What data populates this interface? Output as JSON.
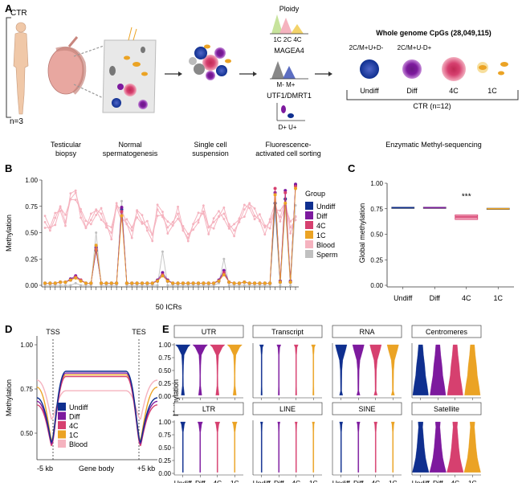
{
  "panels": {
    "a": {
      "letter": "A",
      "ctr": "CTR",
      "n": "n=3",
      "steps": [
        "Testicular",
        "biopsy",
        "Normal",
        "spermatogenesis",
        "Single cell",
        "suspension",
        "Fluorescence-",
        "activated cell sorting"
      ],
      "facs": {
        "ploidy": "Ploidy",
        "ploidy_ticks": "1C 2C 4C",
        "magea4": "MAGEA4",
        "magea4_ticks": "M-  M+",
        "utf1": "UTF1/DMRT1",
        "utf1_ticks": "D+  U+"
      },
      "wgs_title": "Whole genome CpGs (28,049,115)",
      "gate1": "2C/M+U+D-",
      "gate2": "2C/M+U-D+",
      "cells": [
        "Undiff",
        "Diff",
        "4C",
        "1C"
      ],
      "ctr_n": "CTR (n=12)",
      "method": "Enzymatic Methyl-sequencing"
    },
    "b": {
      "letter": "B",
      "ylabel": "Methylation",
      "xlabel": "50 ICRs",
      "legend_title": "Group"
    },
    "c": {
      "letter": "C",
      "ylabel": "Global methylation",
      "sig": "***"
    },
    "d": {
      "letter": "D",
      "ylabel": "Methylation",
      "tss": "TSS",
      "tes": "TES",
      "xl": "-5 kb",
      "xm": "Gene body",
      "xr": "+5 kb"
    },
    "e": {
      "letter": "E",
      "ylabel": "Methylation",
      "facets": [
        "UTR",
        "Transcript",
        "RNA",
        "Centromeres",
        "LTR",
        "LINE",
        "SINE",
        "Satellite"
      ]
    }
  },
  "colors": {
    "Undiff": "#0f2f8f",
    "Diff": "#7d1a9e",
    "4C": "#d6406f",
    "1C": "#eba324",
    "Blood": "#f5b3bf",
    "Sperm": "#c0c0c0"
  },
  "chart_data": [
    {
      "panel": "B",
      "type": "line",
      "xlabel": "50 ICRs",
      "ylabel": "Methylation",
      "ylim": [
        0,
        1
      ],
      "yticks": [
        "0.00",
        "0.25",
        "0.50",
        "0.75",
        "1.00"
      ],
      "legend": {
        "title": "Group",
        "placement": "right",
        "entries": [
          "Undiff",
          "Diff",
          "4C",
          "1C",
          "Blood",
          "Sperm"
        ]
      },
      "series": [
        {
          "name": "Undiff",
          "values": [
            0.02,
            0.02,
            0.02,
            0.03,
            0.03,
            0.05,
            0.08,
            0.05,
            0.02,
            0.02,
            0.33,
            0.02,
            0.02,
            0.02,
            0.02,
            0.72,
            0.02,
            0.02,
            0.02,
            0.02,
            0.02,
            0.02,
            0.04,
            0.1,
            0.04,
            0.02,
            0.02,
            0.02,
            0.02,
            0.02,
            0.02,
            0.02,
            0.02,
            0.02,
            0.04,
            0.12,
            0.03,
            0.02,
            0.02,
            0.03,
            0.02,
            0.02,
            0.02,
            0.02,
            0.02,
            0.78,
            0.03,
            0.82,
            0.03,
            0.95
          ]
        },
        {
          "name": "Diff",
          "values": [
            0.02,
            0.02,
            0.02,
            0.03,
            0.03,
            0.06,
            0.09,
            0.05,
            0.02,
            0.02,
            0.36,
            0.02,
            0.02,
            0.02,
            0.02,
            0.74,
            0.02,
            0.02,
            0.02,
            0.02,
            0.02,
            0.02,
            0.05,
            0.12,
            0.05,
            0.02,
            0.02,
            0.02,
            0.02,
            0.02,
            0.02,
            0.02,
            0.02,
            0.02,
            0.05,
            0.14,
            0.03,
            0.02,
            0.02,
            0.03,
            0.02,
            0.02,
            0.02,
            0.02,
            0.02,
            0.88,
            0.04,
            0.9,
            0.04,
            0.96
          ]
        },
        {
          "name": "4C",
          "values": [
            0.02,
            0.02,
            0.02,
            0.03,
            0.03,
            0.05,
            0.08,
            0.05,
            0.02,
            0.02,
            0.34,
            0.02,
            0.02,
            0.02,
            0.02,
            0.7,
            0.02,
            0.02,
            0.02,
            0.02,
            0.02,
            0.02,
            0.04,
            0.1,
            0.04,
            0.02,
            0.02,
            0.02,
            0.02,
            0.02,
            0.02,
            0.02,
            0.02,
            0.02,
            0.04,
            0.12,
            0.03,
            0.02,
            0.02,
            0.03,
            0.02,
            0.02,
            0.02,
            0.02,
            0.02,
            0.92,
            0.03,
            0.88,
            0.03,
            0.94
          ]
        },
        {
          "name": "1C",
          "values": [
            0.02,
            0.02,
            0.02,
            0.03,
            0.03,
            0.05,
            0.07,
            0.04,
            0.02,
            0.02,
            0.38,
            0.02,
            0.02,
            0.02,
            0.02,
            0.66,
            0.02,
            0.02,
            0.02,
            0.02,
            0.02,
            0.02,
            0.04,
            0.09,
            0.04,
            0.02,
            0.02,
            0.02,
            0.02,
            0.02,
            0.02,
            0.02,
            0.02,
            0.02,
            0.04,
            0.1,
            0.03,
            0.02,
            0.02,
            0.03,
            0.02,
            0.02,
            0.02,
            0.02,
            0.02,
            0.86,
            0.03,
            0.78,
            0.03,
            0.92
          ]
        },
        {
          "name": "Blood",
          "values": [
            0.6,
            0.52,
            0.64,
            0.75,
            0.6,
            0.82,
            0.88,
            0.7,
            0.55,
            0.62,
            0.72,
            0.68,
            0.55,
            0.5,
            0.78,
            0.65,
            0.58,
            0.52,
            0.7,
            0.6,
            0.55,
            0.48,
            0.72,
            0.65,
            0.55,
            0.6,
            0.68,
            0.52,
            0.45,
            0.58,
            0.62,
            0.7,
            0.55,
            0.6,
            0.65,
            0.68,
            0.58,
            0.52,
            0.6,
            0.72,
            0.78,
            0.66,
            0.62,
            0.55,
            0.6,
            0.72,
            0.65,
            0.8,
            0.55,
            0.62
          ]
        },
        {
          "name": "Sperm",
          "values": [
            0.0,
            0.0,
            0.0,
            0.0,
            0.0,
            0.0,
            0.02,
            0.0,
            0.0,
            0.0,
            0.5,
            0.0,
            0.0,
            0.0,
            0.0,
            0.8,
            0.0,
            0.0,
            0.0,
            0.0,
            0.0,
            0.0,
            0.0,
            0.32,
            0.0,
            0.0,
            0.0,
            0.0,
            0.0,
            0.0,
            0.0,
            0.0,
            0.0,
            0.0,
            0.02,
            0.25,
            0.0,
            0.0,
            0.0,
            0.0,
            0.0,
            0.0,
            0.0,
            0.0,
            0.0,
            0.72,
            0.0,
            0.74,
            0.0,
            0.76
          ]
        }
      ]
    },
    {
      "panel": "C",
      "type": "box",
      "categories": [
        "Undiff",
        "Diff",
        "4C",
        "1C"
      ],
      "ylabel": "Global methylation",
      "ylim": [
        0,
        1
      ],
      "yticks": [
        "0.00",
        "0.25",
        "0.50",
        "0.75",
        "1.00"
      ],
      "median": [
        0.76,
        0.76,
        0.67,
        0.75
      ],
      "q1": [
        0.755,
        0.755,
        0.645,
        0.745
      ],
      "q3": [
        0.765,
        0.765,
        0.69,
        0.755
      ],
      "annotation": {
        "category": "4C",
        "text": "***"
      }
    },
    {
      "panel": "D",
      "type": "line",
      "ylabel": "Methylation",
      "ylim": [
        0.35,
        1.05
      ],
      "yticks": [
        "0.50",
        "0.75",
        "1.00"
      ],
      "x": [
        "-5 kb",
        "TSS",
        "Gene body",
        "TES",
        "+5 kb"
      ],
      "legend": {
        "placement": "bottom-left",
        "entries": [
          "Undiff",
          "Diff",
          "4C",
          "1C",
          "Blood"
        ]
      },
      "series": [
        {
          "name": "Undiff",
          "plateau": 0.85,
          "flank": 0.7,
          "dip": 0.45
        },
        {
          "name": "Diff",
          "plateau": 0.84,
          "flank": 0.68,
          "dip": 0.44
        },
        {
          "name": "4C",
          "plateau": 0.82,
          "flank": 0.66,
          "dip": 0.43
        },
        {
          "name": "1C",
          "plateau": 0.83,
          "flank": 0.76,
          "dip": 0.46
        },
        {
          "name": "Blood",
          "plateau": 0.74,
          "flank": 0.8,
          "dip": 0.58
        }
      ]
    },
    {
      "panel": "E",
      "type": "violin",
      "categories": [
        "Undiff",
        "Diff",
        "4C",
        "1C"
      ],
      "ylabel": "Methylation",
      "ylim": [
        0,
        1
      ],
      "yticks": [
        "0.00",
        "0.25",
        "0.50",
        "0.75",
        "1.00"
      ],
      "facets": [
        "UTR",
        "Transcript",
        "RNA",
        "Centromeres",
        "LTR",
        "LINE",
        "SINE",
        "Satellite"
      ]
    }
  ]
}
